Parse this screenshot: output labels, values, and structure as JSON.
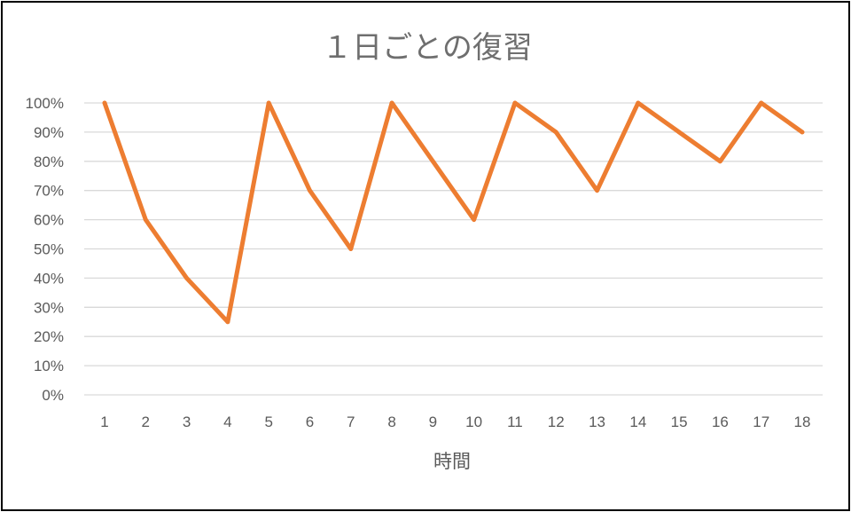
{
  "chart_data": {
    "type": "line",
    "title": "１日ごとの復習",
    "xlabel": "時間",
    "ylabel": "",
    "x": [
      1,
      2,
      3,
      4,
      5,
      6,
      7,
      8,
      9,
      10,
      11,
      12,
      13,
      14,
      15,
      16,
      17,
      18
    ],
    "series": [
      {
        "values": [
          100,
          60,
          40,
          25,
          100,
          70,
          50,
          100,
          80,
          60,
          100,
          90,
          70,
          100,
          90,
          80,
          100,
          90
        ]
      }
    ],
    "ylim": [
      0,
      100
    ],
    "yticks": [
      "0%",
      "10%",
      "20%",
      "30%",
      "40%",
      "50%",
      "60%",
      "70%",
      "80%",
      "90%",
      "100%"
    ],
    "grid": true,
    "line_color": "#ED7D31",
    "grid_color": "#D9D9D9"
  }
}
